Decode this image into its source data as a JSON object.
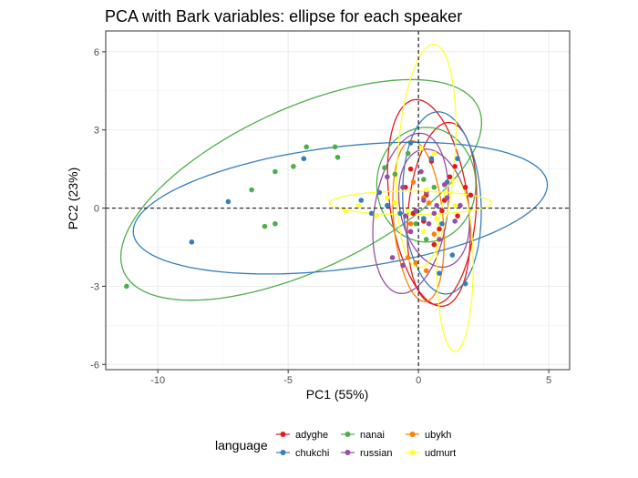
{
  "chart_data": {
    "type": "scatter",
    "title": "PCA with Bark variables: ellipse for each speaker",
    "xlabel": "PC1 (55%)",
    "ylabel": "PC2 (23%)",
    "xlim": [
      -12,
      5.8
    ],
    "ylim": [
      -6.2,
      6.8
    ],
    "x_ticks": [
      -10,
      -5,
      0,
      5
    ],
    "y_ticks": [
      -6,
      -3,
      0,
      3,
      6
    ],
    "x_tick_labels": [
      "-10",
      "-5",
      "0",
      "5"
    ],
    "y_tick_labels": [
      "-6",
      "-3",
      "0",
      "3",
      "6"
    ],
    "grid": true,
    "reference_lines": [
      {
        "axis": "x",
        "value": 0,
        "style": "dashed"
      },
      {
        "axis": "y",
        "value": 0,
        "style": "dashed"
      }
    ],
    "legend": {
      "title": "language",
      "position": "bottom",
      "entries": [
        {
          "name": "adyghe",
          "color": "#e41a1c"
        },
        {
          "name": "nanai",
          "color": "#4daf4a"
        },
        {
          "name": "ubykh",
          "color": "#ff7f00"
        },
        {
          "name": "chukchi",
          "color": "#377eb8"
        },
        {
          "name": "russian",
          "color": "#984ea3"
        },
        {
          "name": "udmurt",
          "color": "#ffff33"
        }
      ]
    },
    "series": [
      {
        "name": "adyghe",
        "color": "#e41a1c",
        "points": [
          [
            0.5,
            1.8
          ],
          [
            1.2,
            1.2
          ],
          [
            0.3,
            0.5
          ],
          [
            1.5,
            -0.3
          ],
          [
            0.8,
            -0.8
          ],
          [
            -0.3,
            1.5
          ],
          [
            1.8,
            0.8
          ],
          [
            0.2,
            -0.5
          ],
          [
            1.0,
            0.3
          ],
          [
            0.6,
            -1.4
          ],
          [
            -0.5,
            0.8
          ],
          [
            1.4,
            1.6
          ],
          [
            0.9,
            -0.1
          ],
          [
            2.0,
            0.5
          ],
          [
            -0.2,
            -0.2
          ]
        ],
        "ellipses": [
          {
            "cx": 0.4,
            "cy": 0.2,
            "rx": 1.5,
            "ry": 4.0,
            "angle": 8
          },
          {
            "cx": 0.9,
            "cy": -0.2,
            "rx": 1.3,
            "ry": 3.5,
            "angle": -5
          }
        ]
      },
      {
        "name": "nanai",
        "color": "#4daf4a",
        "points": [
          [
            -11.2,
            -3.0
          ],
          [
            -4.3,
            2.35
          ],
          [
            -3.2,
            2.35
          ],
          [
            -3.1,
            1.95
          ],
          [
            -4.8,
            1.6
          ],
          [
            -5.5,
            1.4
          ],
          [
            -6.4,
            0.7
          ],
          [
            -5.9,
            -0.7
          ],
          [
            -5.5,
            -0.6
          ],
          [
            -1.3,
            1.55
          ],
          [
            -0.9,
            1.3
          ],
          [
            -0.4,
            2.1
          ],
          [
            0.2,
            1.1
          ],
          [
            0.6,
            0.8
          ],
          [
            -0.1,
            -0.6
          ],
          [
            0.3,
            -1.2
          ]
        ],
        "ellipses": [
          {
            "cx": -4.5,
            "cy": 0.7,
            "rx": 7.5,
            "ry": 3.1,
            "angle": 25
          },
          {
            "cx": 0.3,
            "cy": 0.9,
            "rx": 1.9,
            "ry": 2.2,
            "angle": 0
          }
        ]
      },
      {
        "name": "ubykh",
        "color": "#ff7f00",
        "points": [
          [
            -0.4,
            -1.9
          ],
          [
            -0.1,
            -2.1
          ],
          [
            0.3,
            -2.4
          ],
          [
            -0.3,
            -0.6
          ],
          [
            0.2,
            0.4
          ],
          [
            0.6,
            -1.0
          ],
          [
            -0.2,
            1.0
          ],
          [
            0.4,
            0.2
          ]
        ],
        "ellipses": [
          {
            "cx": 0.0,
            "cy": -0.5,
            "rx": 0.95,
            "ry": 3.1,
            "angle": 5
          }
        ]
      },
      {
        "name": "chukchi",
        "color": "#377eb8",
        "points": [
          [
            -8.7,
            -1.3
          ],
          [
            -7.3,
            0.25
          ],
          [
            -4.4,
            1.9
          ],
          [
            -1.5,
            0.6
          ],
          [
            -1.2,
            0.1
          ],
          [
            -0.7,
            -0.2
          ],
          [
            -0.3,
            2.5
          ],
          [
            0.5,
            1.9
          ],
          [
            1.1,
            1.0
          ],
          [
            0.9,
            -0.6
          ],
          [
            0.8,
            -2.5
          ],
          [
            1.3,
            -1.8
          ],
          [
            1.8,
            -2.9
          ],
          [
            1.5,
            1.9
          ],
          [
            0.2,
            -0.4
          ],
          [
            -1.8,
            -0.2
          ],
          [
            -2.2,
            0.3
          ]
        ],
        "ellipses": [
          {
            "cx": -3.0,
            "cy": 0.0,
            "rx": 8.0,
            "ry": 2.35,
            "angle": 7
          },
          {
            "cx": 0.9,
            "cy": 0.2,
            "rx": 1.5,
            "ry": 3.5,
            "angle": 3
          }
        ]
      },
      {
        "name": "russian",
        "color": "#984ea3",
        "points": [
          [
            -1.2,
            1.2
          ],
          [
            -0.6,
            0.8
          ],
          [
            0.2,
            0.3
          ],
          [
            0.6,
            -0.2
          ],
          [
            1.1,
            0.4
          ],
          [
            -0.3,
            -0.9
          ],
          [
            0.8,
            -1.2
          ],
          [
            1.4,
            -0.5
          ],
          [
            0.3,
            0.6
          ],
          [
            -0.5,
            -0.3
          ],
          [
            1.0,
            0.9
          ],
          [
            0.4,
            -0.6
          ],
          [
            -1.0,
            -1.9
          ],
          [
            -0.6,
            -2.2
          ],
          [
            1.6,
            0.1
          ],
          [
            0.1,
            1.4
          ],
          [
            0.7,
            0.1
          ],
          [
            -0.1,
            -0.1
          ]
        ],
        "ellipses": [
          {
            "cx": -0.3,
            "cy": -0.2,
            "rx": 1.4,
            "ry": 3.1,
            "angle": -8
          },
          {
            "cx": 0.6,
            "cy": 0.0,
            "rx": 1.3,
            "ry": 2.3,
            "angle": 12
          }
        ]
      },
      {
        "name": "udmurt",
        "color": "#ffff33",
        "points": [
          [
            -2.8,
            -0.1
          ],
          [
            -2.3,
            0.1
          ],
          [
            -1.6,
            -0.3
          ],
          [
            -0.9,
            0.2
          ],
          [
            0.1,
            2.3
          ],
          [
            0.6,
            2.1
          ],
          [
            0.7,
            -0.4
          ],
          [
            -0.4,
            -0.1
          ],
          [
            0.3,
            0.7
          ],
          [
            1.4,
            0.1
          ],
          [
            0.2,
            -0.9
          ],
          [
            -1.2,
            0.4
          ]
        ],
        "ellipses": [
          {
            "cx": 0.3,
            "cy": 2.0,
            "rx": 1.1,
            "ry": 4.3,
            "angle": -4
          },
          {
            "cx": 1.4,
            "cy": -2.2,
            "rx": 0.7,
            "ry": 3.3,
            "angle": 0
          },
          {
            "cx": -0.3,
            "cy": 0.2,
            "rx": 3.1,
            "ry": 0.45,
            "angle": 0
          }
        ]
      }
    ]
  }
}
